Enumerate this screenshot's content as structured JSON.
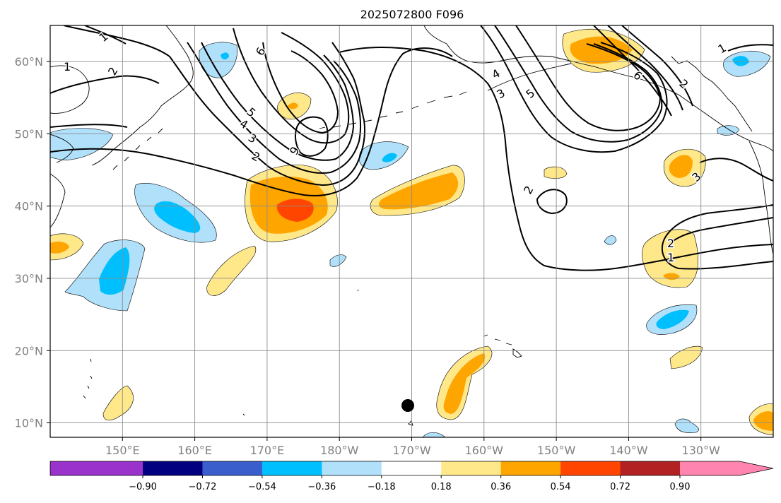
{
  "title": "2025072800 F096",
  "map": {
    "lon_range": [
      140,
      240
    ],
    "lat_range": [
      8,
      65
    ],
    "longitude_labels": [
      "150°E",
      "160°E",
      "170°E",
      "180°W",
      "170°W",
      "160°W",
      "150°W",
      "140°W",
      "130°W"
    ],
    "latitude_labels": [
      "60°N",
      "50°N",
      "40°N",
      "30°N",
      "20°N",
      "10°N"
    ],
    "grid": true,
    "contour_labels": [
      "1",
      "2",
      "3",
      "4",
      "5",
      "6",
      "6",
      "6",
      "5",
      "4",
      "3",
      "2",
      "2",
      "3",
      "2",
      "1",
      "1",
      "1",
      "2"
    ],
    "marker": "black-dot"
  },
  "colorbar": {
    "tick_labels": [
      "−0.90",
      "−0.72",
      "−0.54",
      "−0.36",
      "−0.18",
      "0.18",
      "0.36",
      "0.54",
      "0.72",
      "0.90"
    ],
    "colors": [
      "#9933cc",
      "#000080",
      "#3a5fcd",
      "#00bfff",
      "#b0e0fa",
      "#ffffff",
      "#ffe88a",
      "#ffa500",
      "#ff4500",
      "#b22222",
      "#ff85b0"
    ],
    "extend": "both"
  }
}
